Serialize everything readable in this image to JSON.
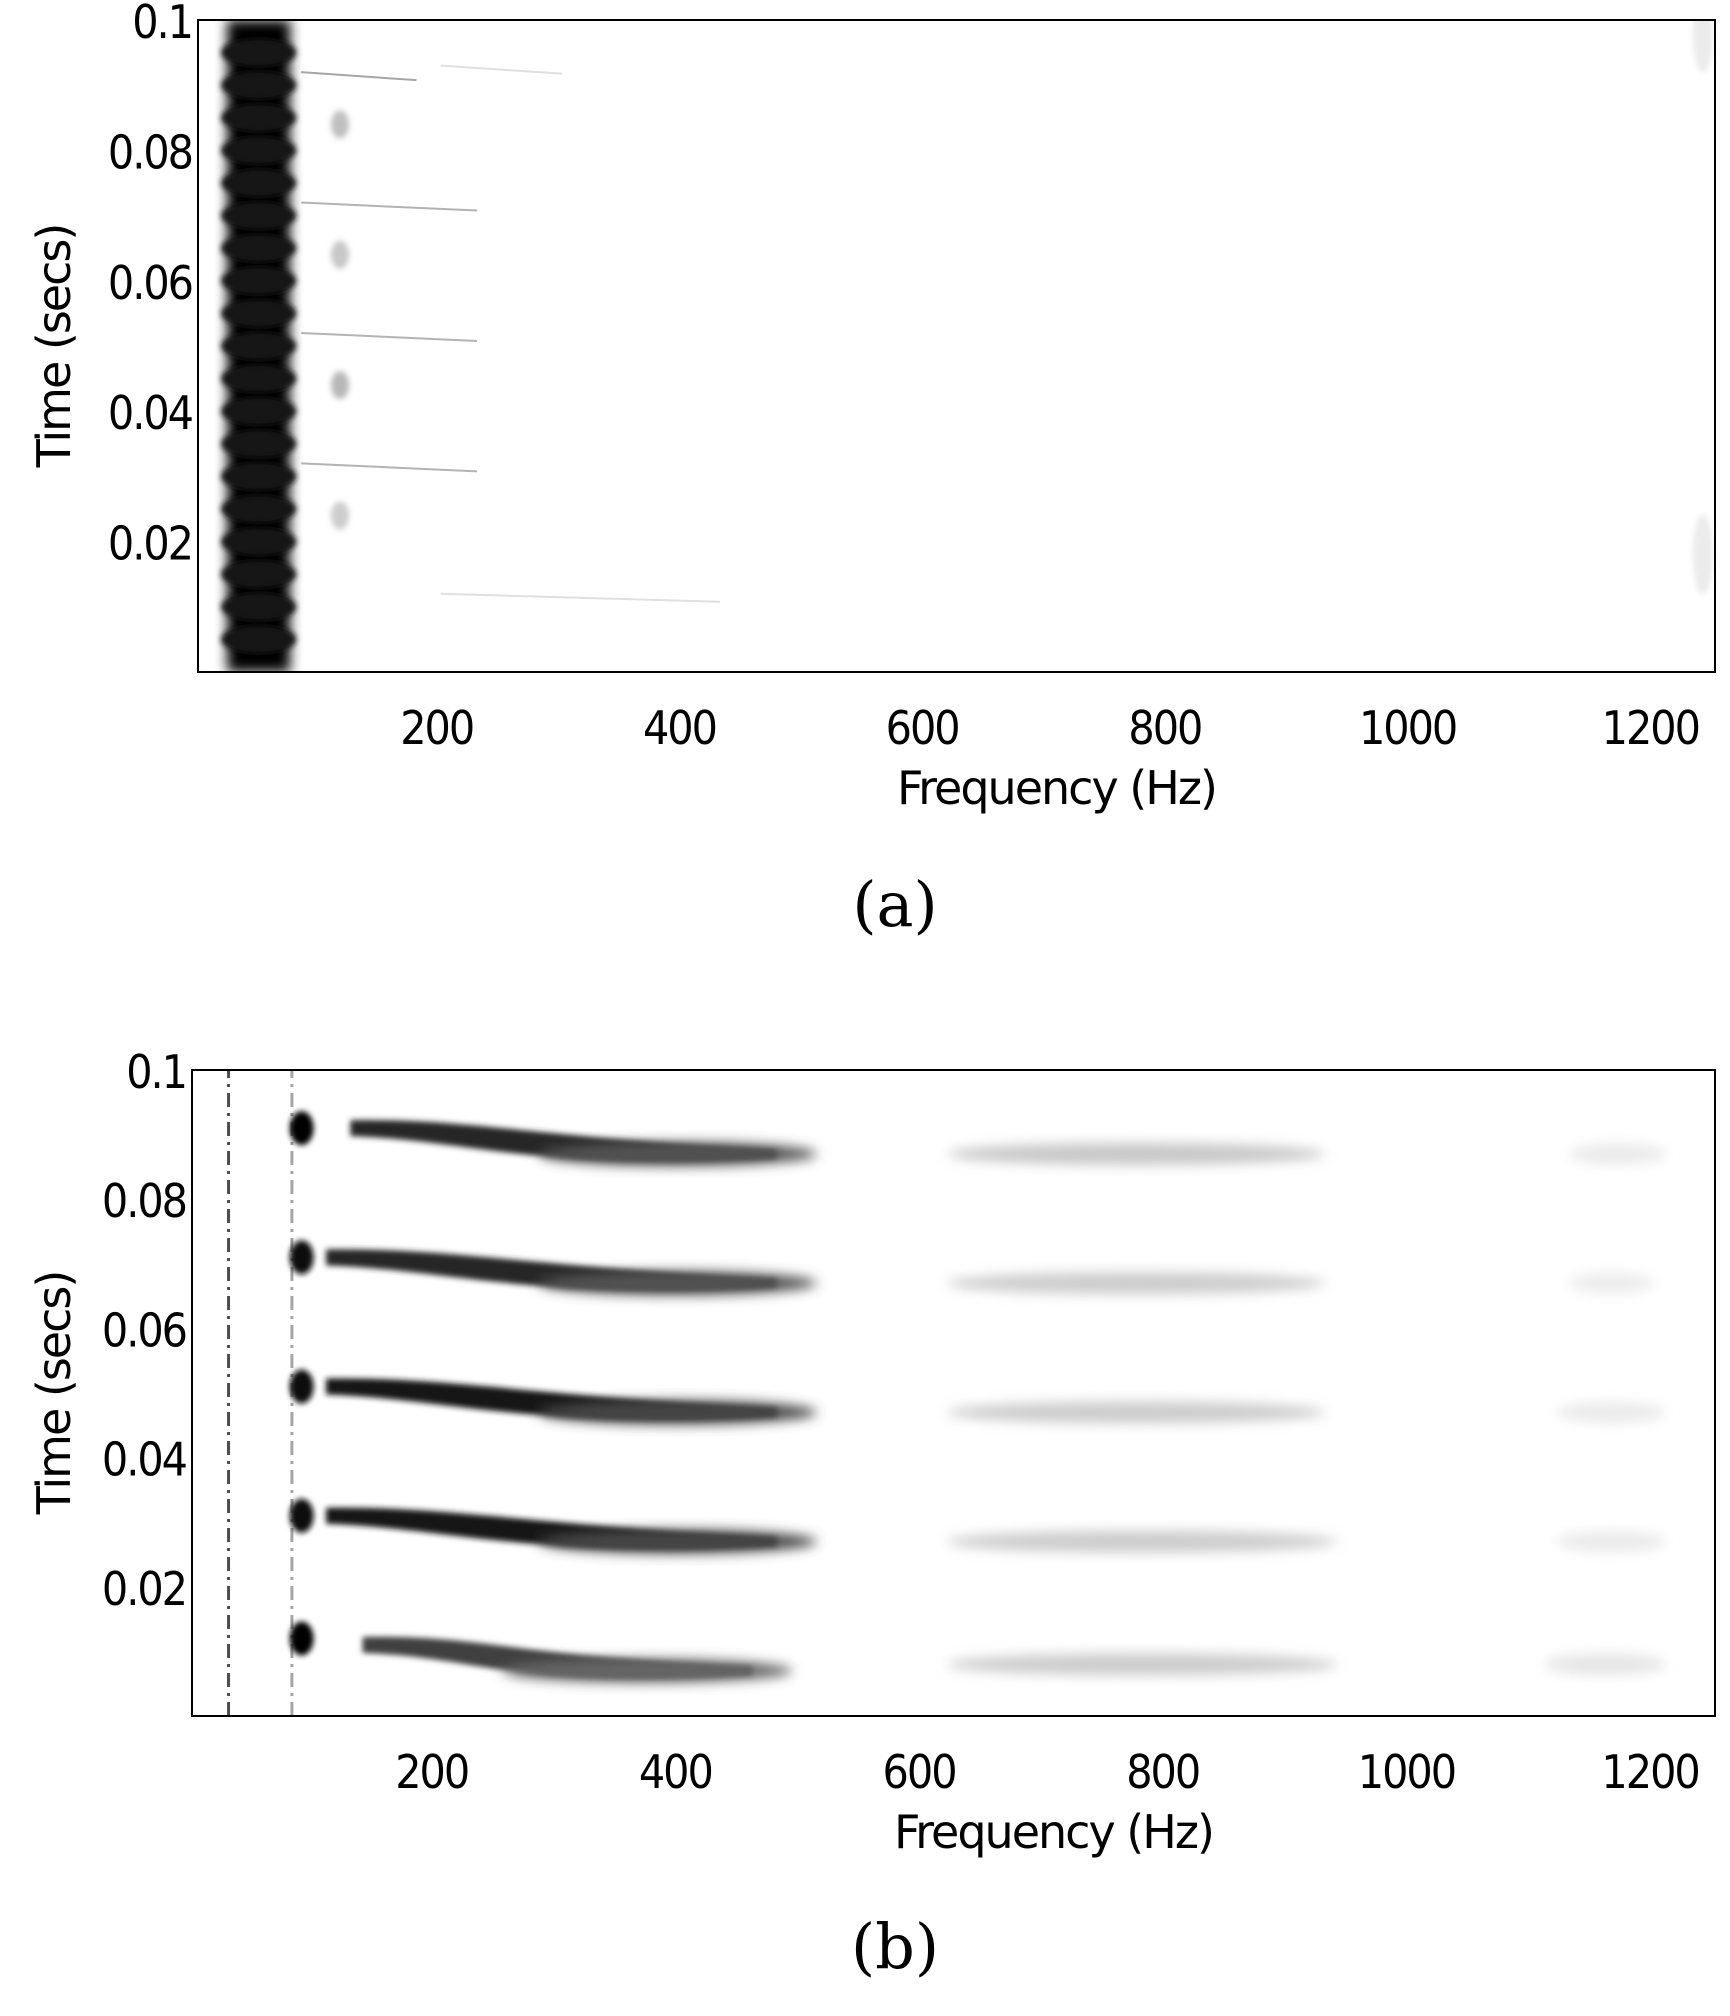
{
  "chart_data": [
    {
      "type": "heatmap",
      "panel_label": "(a)",
      "xlabel": "Frequency (Hz)",
      "ylabel": "Time (secs)",
      "xlim": [
        0,
        1250
      ],
      "ylim": [
        0,
        0.1
      ],
      "xticks": [
        200,
        400,
        600,
        800,
        1000,
        1200
      ],
      "xtick_labels": [
        "200",
        "400",
        "600",
        "800",
        "1000",
        "1200"
      ],
      "yticks": [
        0.02,
        0.04,
        0.06,
        0.08,
        0.1
      ],
      "ytick_labels": [
        "0.02",
        "0.04",
        "0.06",
        "0.08",
        "0.1"
      ],
      "colormap": "white-to-black",
      "features": [
        {
          "kind": "band",
          "f": 50,
          "t0": 0.0,
          "t1": 0.1,
          "half_width_hz": 26,
          "intensity": 1.0
        },
        {
          "kind": "spot",
          "f": 117,
          "t": 0.084,
          "intensity": 0.25
        },
        {
          "kind": "spot",
          "f": 117,
          "t": 0.064,
          "intensity": 0.22
        },
        {
          "kind": "spot",
          "f": 117,
          "t": 0.044,
          "intensity": 0.28
        },
        {
          "kind": "spot",
          "f": 117,
          "t": 0.024,
          "intensity": 0.2
        },
        {
          "kind": "streak",
          "f0": 85,
          "f1": 180,
          "t": 0.092,
          "intensity": 0.35
        },
        {
          "kind": "streak",
          "f0": 85,
          "f1": 230,
          "t": 0.072,
          "intensity": 0.3
        },
        {
          "kind": "streak",
          "f0": 85,
          "f1": 230,
          "t": 0.052,
          "intensity": 0.3
        },
        {
          "kind": "streak",
          "f0": 85,
          "f1": 230,
          "t": 0.032,
          "intensity": 0.3
        },
        {
          "kind": "streak",
          "f0": 200,
          "f1": 300,
          "t": 0.093,
          "intensity": 0.12
        },
        {
          "kind": "streak",
          "f0": 200,
          "f1": 430,
          "t": 0.012,
          "intensity": 0.12
        },
        {
          "kind": "edge",
          "f": 1240,
          "t": 0.098,
          "intensity": 0.08
        },
        {
          "kind": "edge",
          "f": 1240,
          "t": 0.018,
          "intensity": 0.08
        }
      ]
    },
    {
      "type": "heatmap",
      "panel_label": "(b)",
      "xlabel": "Frequency (Hz)",
      "ylabel": "Time (secs)",
      "xlim": [
        0,
        1250
      ],
      "ylim": [
        0,
        0.1
      ],
      "xticks": [
        200,
        400,
        600,
        800,
        1000,
        1200
      ],
      "xtick_labels": [
        "200",
        "400",
        "600",
        "800",
        "1000",
        "1200"
      ],
      "yticks": [
        0.02,
        0.04,
        0.06,
        0.08,
        0.1
      ],
      "ytick_labels": [
        "0.02",
        "0.04",
        "0.06",
        "0.08",
        "0.1"
      ],
      "colormap": "white-to-black",
      "features": [
        {
          "kind": "dashed-line",
          "f": 30,
          "t0": 0.0,
          "t1": 0.1,
          "intensity": 0.7
        },
        {
          "kind": "dashed-line",
          "f": 82,
          "t0": 0.0,
          "t1": 0.1,
          "intensity": 0.35
        },
        {
          "kind": "blob",
          "f": 90,
          "t": 0.091,
          "intensity": 1.0
        },
        {
          "kind": "blob",
          "f": 90,
          "t": 0.071,
          "intensity": 0.95
        },
        {
          "kind": "blob",
          "f": 90,
          "t": 0.051,
          "intensity": 0.95
        },
        {
          "kind": "blob",
          "f": 90,
          "t": 0.031,
          "intensity": 0.95
        },
        {
          "kind": "blob",
          "f": 90,
          "t": 0.012,
          "intensity": 1.0
        },
        {
          "kind": "harmonic",
          "t_start": 0.091,
          "t_end": 0.087,
          "f0": 130,
          "f_peak": 350,
          "f1": 480,
          "intensity": 0.85
        },
        {
          "kind": "harmonic",
          "t_start": 0.071,
          "t_end": 0.067,
          "f0": 110,
          "f_peak": 350,
          "f1": 480,
          "intensity": 0.85
        },
        {
          "kind": "harmonic",
          "t_start": 0.051,
          "t_end": 0.047,
          "f0": 110,
          "f_peak": 350,
          "f1": 480,
          "intensity": 0.9
        },
        {
          "kind": "harmonic",
          "t_start": 0.031,
          "t_end": 0.027,
          "f0": 110,
          "f_peak": 350,
          "f1": 480,
          "intensity": 0.9
        },
        {
          "kind": "harmonic",
          "t_start": 0.011,
          "t_end": 0.007,
          "f0": 140,
          "f_peak": 320,
          "f1": 460,
          "intensity": 0.75
        },
        {
          "kind": "faint-band",
          "t": 0.087,
          "f0": 620,
          "f1": 930,
          "intensity": 0.22
        },
        {
          "kind": "faint-band",
          "t": 0.067,
          "f0": 620,
          "f1": 930,
          "intensity": 0.2
        },
        {
          "kind": "faint-band",
          "t": 0.047,
          "f0": 620,
          "f1": 930,
          "intensity": 0.2
        },
        {
          "kind": "faint-band",
          "t": 0.027,
          "f0": 620,
          "f1": 940,
          "intensity": 0.2
        },
        {
          "kind": "faint-band",
          "t": 0.008,
          "f0": 620,
          "f1": 940,
          "intensity": 0.2
        },
        {
          "kind": "faint-band",
          "t": 0.087,
          "f0": 1130,
          "f1": 1210,
          "intensity": 0.08
        },
        {
          "kind": "faint-band",
          "t": 0.067,
          "f0": 1130,
          "f1": 1200,
          "intensity": 0.07
        },
        {
          "kind": "faint-band",
          "t": 0.047,
          "f0": 1120,
          "f1": 1210,
          "intensity": 0.08
        },
        {
          "kind": "faint-band",
          "t": 0.027,
          "f0": 1120,
          "f1": 1210,
          "intensity": 0.08
        },
        {
          "kind": "faint-band",
          "t": 0.008,
          "f0": 1110,
          "f1": 1210,
          "intensity": 0.1
        }
      ]
    }
  ]
}
